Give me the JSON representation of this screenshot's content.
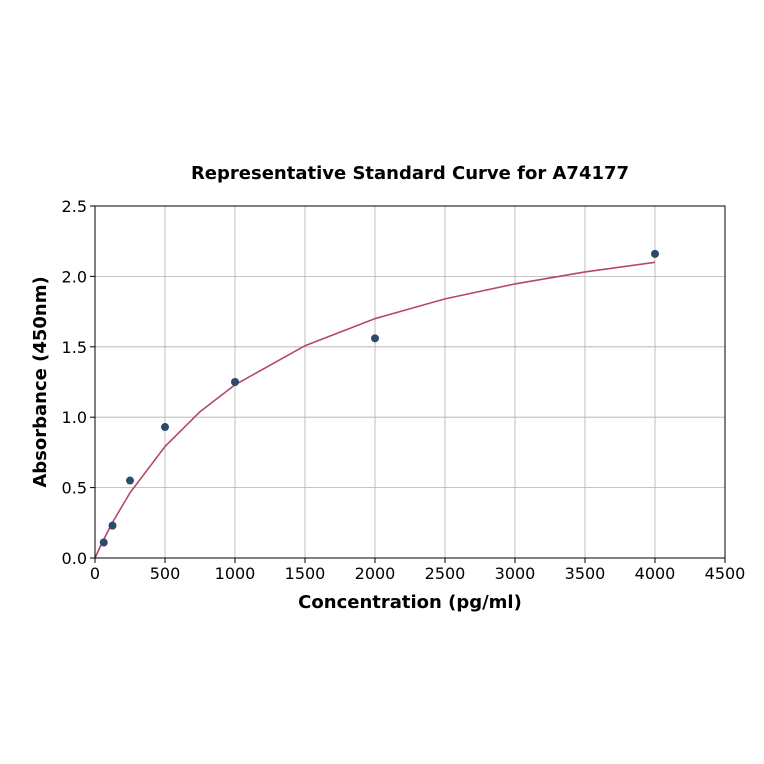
{
  "chart_data": {
    "type": "scatter",
    "title": "Representative Standard Curve for A74177",
    "xlabel": "Concentration (pg/ml)",
    "ylabel": "Absorbance (450nm)",
    "xlim": [
      0,
      4500
    ],
    "ylim": [
      0,
      2.5
    ],
    "xticks": [
      "0",
      "500",
      "1000",
      "1500",
      "2000",
      "2500",
      "3000",
      "3500",
      "4000",
      "4500"
    ],
    "yticks": [
      "0.0",
      "0.5",
      "1.0",
      "1.5",
      "2.0",
      "2.5"
    ],
    "grid": true,
    "points": {
      "x": [
        62.5,
        125,
        250,
        500,
        1000,
        2000,
        4000
      ],
      "y": [
        0.11,
        0.23,
        0.55,
        0.93,
        1.25,
        1.56,
        2.16
      ],
      "color": "#2e4a6b"
    },
    "fit_curve": {
      "x": [
        0,
        50,
        125,
        250,
        500,
        750,
        1000,
        1500,
        2000,
        2500,
        3000,
        3500,
        4000
      ],
      "y": [
        0,
        0.107,
        0.253,
        0.463,
        0.792,
        1.039,
        1.23,
        1.508,
        1.7,
        1.84,
        1.947,
        2.032,
        2.1
      ],
      "color": "#b5476b"
    }
  }
}
